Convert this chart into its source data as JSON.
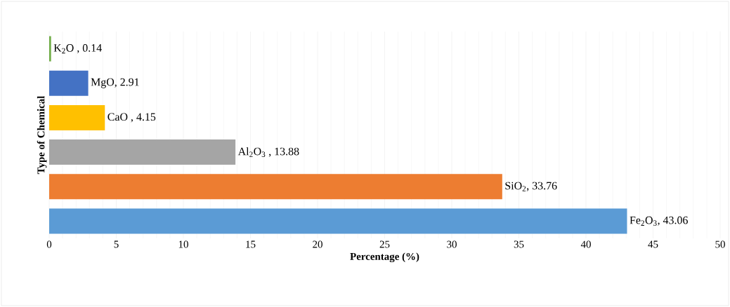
{
  "chart_data": {
    "type": "bar",
    "orientation": "horizontal",
    "xlabel": "Percentage (%)",
    "ylabel": "Type of Chemical",
    "categories": [
      null,
      null,
      null,
      null,
      null,
      null
    ],
    "values": [
      0.14,
      2.91,
      4.15,
      13.88,
      33.76,
      43.06
    ],
    "colors": [
      "#70ad47",
      "#4472c4",
      "#ffc000",
      "#a5a5a5",
      "#ed7d31",
      "#5b9bd5"
    ],
    "value_labels": [
      "K$_{2}$O , 0.14",
      "MgO, 2.91",
      "CaO , 4.15",
      "Al$_{2}$O$_{3}$ , 13.88",
      "SiO$_{2}$, 33.76",
      "Fe$_{2}$O$_{3}$, 43.06"
    ],
    "xlim": [
      0,
      50
    ],
    "xticks": [
      0,
      5,
      10,
      15,
      20,
      25,
      30,
      35,
      40,
      45,
      50
    ],
    "grid": "x"
  }
}
